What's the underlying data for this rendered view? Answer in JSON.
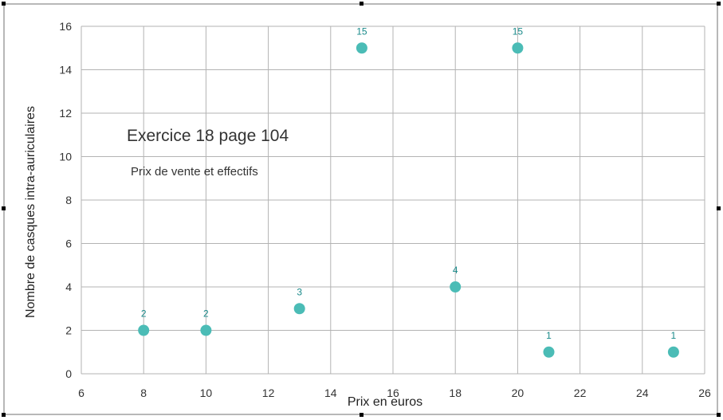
{
  "chart_data": {
    "type": "scatter",
    "title": "Exercice 18 page 104",
    "subtitle": "Prix de vente et effectifs",
    "xlabel": "Prix en euros",
    "ylabel": "Nombre de casques intra-auriculaires",
    "xlim": [
      6,
      26
    ],
    "ylim": [
      0,
      16
    ],
    "xticks": [
      6,
      8,
      10,
      12,
      14,
      16,
      18,
      20,
      22,
      24,
      26
    ],
    "yticks": [
      0,
      2,
      4,
      6,
      8,
      10,
      12,
      14,
      16
    ],
    "grid": true,
    "marker_color": "#4bbcb6",
    "label_color": "#1a8a8a",
    "x": [
      8,
      10,
      13,
      15,
      18,
      20,
      21,
      25
    ],
    "y": [
      2,
      2,
      3,
      15,
      4,
      15,
      1,
      1
    ],
    "data_labels": [
      "2",
      "2",
      "3",
      "15",
      "4",
      "15",
      "1",
      "1"
    ]
  }
}
